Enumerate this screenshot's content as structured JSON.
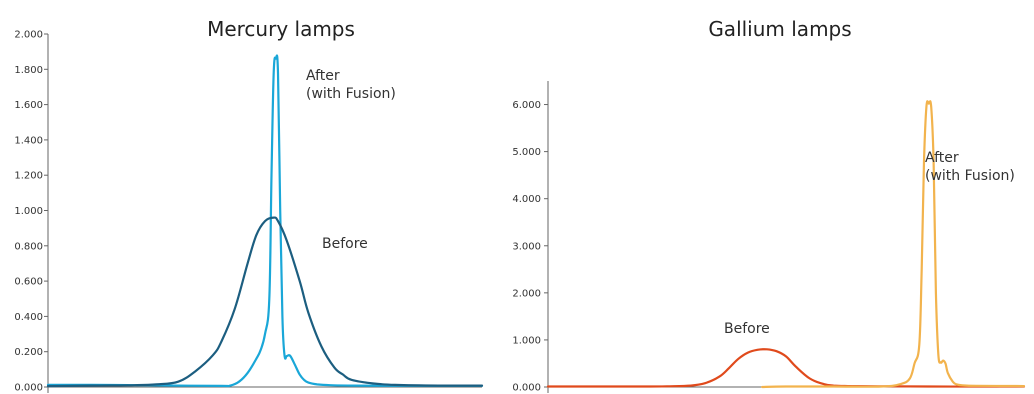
{
  "chart_data": [
    {
      "type": "line",
      "title": "Mercury lamps",
      "xlabel": "",
      "ylabel": "",
      "ylim": [
        0,
        2000
      ],
      "xlim": [
        0,
        100
      ],
      "yticks": [
        0,
        200,
        400,
        600,
        800,
        1000,
        1200,
        1400,
        1600,
        1800,
        2000
      ],
      "ytick_labels": [
        "0.000",
        "0.200",
        "0.400",
        "0.600",
        "0.800",
        "1.000",
        "1.200",
        "1.400",
        "1.600",
        "1.800",
        "2.000"
      ],
      "grid": false,
      "legend": "none",
      "annotations": [
        {
          "lines": [
            "After",
            "(with Fusion)"
          ],
          "series": "after"
        },
        {
          "lines": [
            "Before"
          ],
          "series": "before"
        }
      ],
      "series": [
        {
          "id": "after",
          "color": "#1aa7d8",
          "x": [
            0,
            10,
            20,
            30,
            40,
            42,
            44,
            46,
            48,
            49,
            50,
            51,
            51.5,
            52,
            52.5,
            53,
            53.5,
            54,
            54.5,
            55,
            55.5,
            56,
            57,
            58,
            59,
            60,
            62,
            65,
            70,
            80,
            90,
            100
          ],
          "y": [
            12,
            12,
            10,
            8,
            6,
            8,
            30,
            80,
            160,
            210,
            300,
            500,
            1200,
            1780,
            1860,
            1780,
            1000,
            400,
            180,
            175,
            180,
            170,
            120,
            70,
            40,
            25,
            15,
            10,
            8,
            7,
            7,
            7
          ]
        },
        {
          "id": "before",
          "color": "#1c5e80",
          "x": [
            0,
            10,
            20,
            25,
            30,
            34,
            38,
            40,
            43,
            46,
            48,
            50,
            52,
            53,
            55,
            58,
            60,
            63,
            66,
            68,
            70,
            75,
            80,
            90,
            100
          ],
          "y": [
            5,
            8,
            10,
            15,
            30,
            90,
            180,
            260,
            440,
            700,
            860,
            940,
            960,
            940,
            830,
            600,
            420,
            230,
            110,
            70,
            40,
            20,
            12,
            8,
            8
          ]
        }
      ]
    },
    {
      "type": "line",
      "title": "Gallium lamps",
      "xlabel": "",
      "ylabel": "",
      "ylim": [
        0,
        6500
      ],
      "xlim": [
        0,
        100
      ],
      "yticks": [
        0,
        1000,
        2000,
        3000,
        4000,
        5000,
        6000
      ],
      "ytick_labels": [
        "0.000",
        "1.000",
        "2.000",
        "3.000",
        "4.000",
        "5.000",
        "6.000"
      ],
      "grid": false,
      "legend": "none",
      "annotations": [
        {
          "lines": [
            "After",
            "(with Fusion)"
          ],
          "series": "after"
        },
        {
          "lines": [
            "Before"
          ],
          "series": "before"
        }
      ],
      "series": [
        {
          "id": "before",
          "color": "#e04a1c",
          "x": [
            0,
            10,
            20,
            25,
            30,
            33,
            36,
            38,
            40,
            42,
            44,
            46,
            48,
            50,
            52,
            55,
            58,
            60,
            63,
            70,
            80,
            90,
            100
          ],
          "y": [
            10,
            10,
            10,
            15,
            30,
            80,
            220,
            400,
            600,
            730,
            790,
            800,
            760,
            650,
            440,
            180,
            60,
            30,
            20,
            15,
            10,
            10,
            10
          ]
        },
        {
          "id": "after",
          "color": "#f2b34d",
          "x": [
            45,
            50,
            60,
            70,
            74,
            76,
            77,
            78,
            78.5,
            79,
            79.5,
            80,
            80.5,
            81,
            81.5,
            82,
            82.5,
            83,
            83.5,
            84,
            85,
            86,
            88,
            90,
            95,
            100
          ],
          "y": [
            0,
            10,
            10,
            10,
            60,
            180,
            500,
            900,
            2500,
            4800,
            5950,
            6020,
            5950,
            4800,
            2000,
            700,
            520,
            560,
            500,
            300,
            120,
            50,
            30,
            25,
            22,
            20
          ]
        }
      ]
    }
  ]
}
